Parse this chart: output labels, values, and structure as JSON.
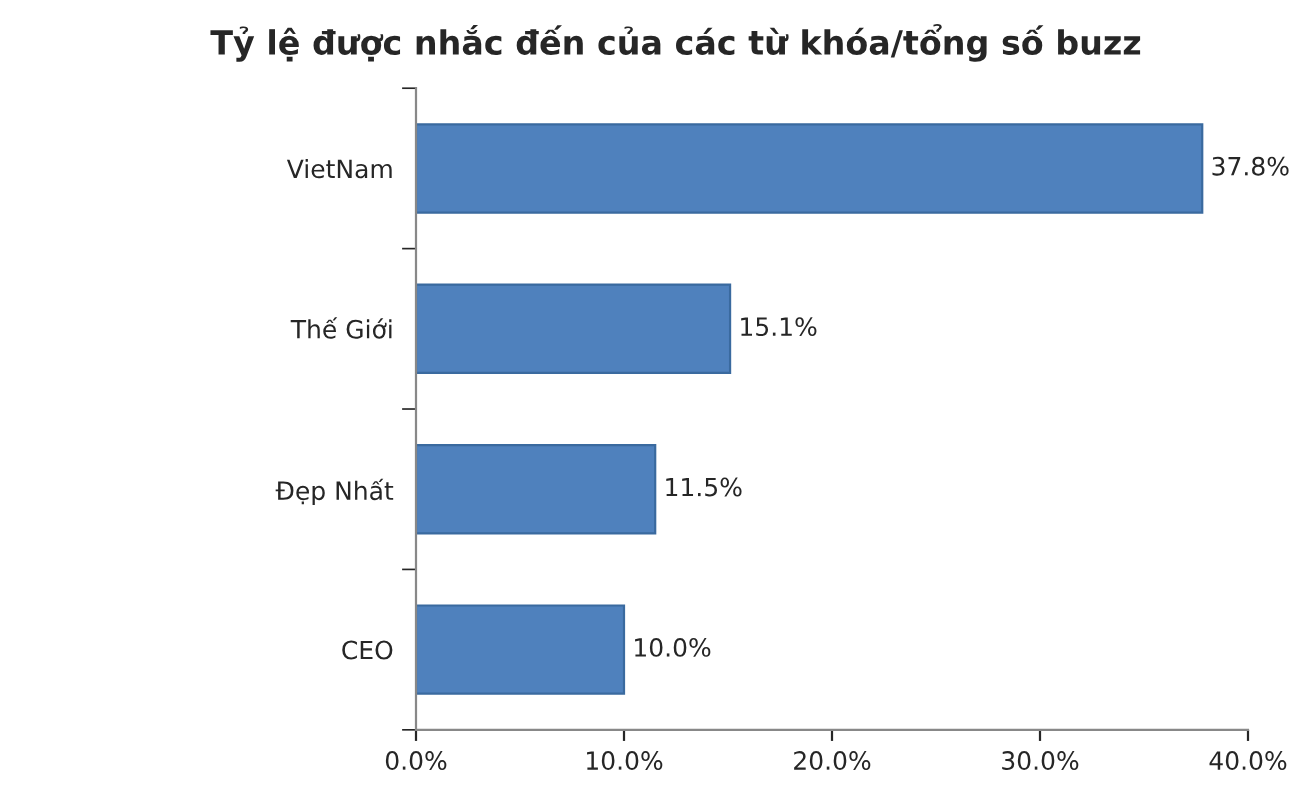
{
  "chart_data": {
    "type": "bar",
    "orientation": "horizontal",
    "title": "Tỷ lệ được nhắc đến của các từ khóa/tổng số buzz",
    "categories": [
      "VietNam",
      "Thế Giới",
      "Đẹp Nhất",
      "CEO"
    ],
    "values": [
      37.8,
      15.1,
      11.5,
      10.0
    ],
    "value_labels": [
      "37.8%",
      "15.1%",
      "11.5%",
      "10.0%"
    ],
    "color": "#4f81bd",
    "xlim": [
      0,
      40
    ],
    "xticks": [
      {
        "value": 0,
        "label": "0.0%"
      },
      {
        "value": 10,
        "label": "10.0%"
      },
      {
        "value": 20,
        "label": "20.0%"
      },
      {
        "value": 30,
        "label": "30.0%"
      },
      {
        "value": 40,
        "label": "40.0%"
      }
    ],
    "grid": false,
    "legend": false
  }
}
